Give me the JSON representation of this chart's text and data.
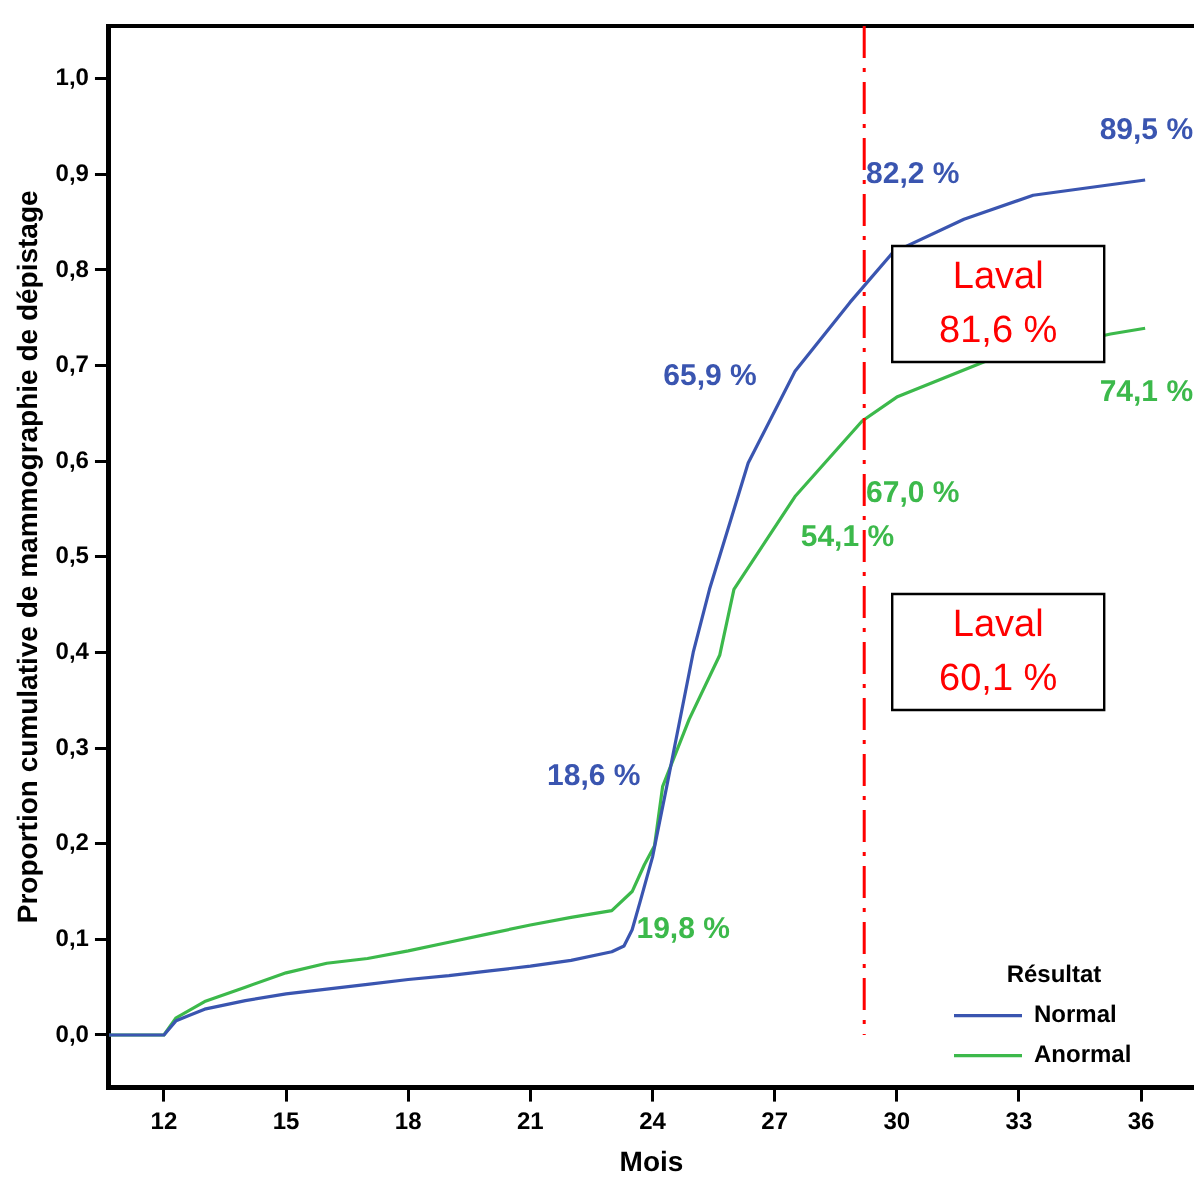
{
  "chart_data": {
    "type": "line",
    "xlabel": "Mois",
    "ylabel": "Proportion cumulative de mammographie de dépistage",
    "legend_title": "Résultat",
    "legend": "bottom right",
    "grid": false,
    "marker": "none",
    "line_style": "solid",
    "xlim": [
      10.65,
      37.3
    ],
    "xticks": [
      12,
      15,
      18,
      21,
      24,
      27,
      30,
      33,
      36
    ],
    "ylim": [
      -0.055,
      1.055
    ],
    "yticks": [
      {
        "value": 0,
        "label": "0,0"
      },
      {
        "value": 0.1,
        "label": "0,1"
      },
      {
        "value": 0.2,
        "label": "0,2"
      },
      {
        "value": 0.3,
        "label": "0,3"
      },
      {
        "value": 0.4,
        "label": "0,4"
      },
      {
        "value": 0.5,
        "label": "0,5"
      },
      {
        "value": 0.6,
        "label": "0,6"
      },
      {
        "value": 0.7,
        "label": "0,7"
      },
      {
        "value": 0.8,
        "label": "0,8"
      },
      {
        "value": 0.9,
        "label": "0,9"
      },
      {
        "value": 1,
        "label": "1,0"
      }
    ],
    "series": [
      {
        "name": "Normal",
        "color": "#3a55b0",
        "x": [
          10.65,
          12,
          12.3,
          13,
          14,
          15,
          16,
          17,
          18,
          19,
          20,
          21,
          22,
          23,
          23.3,
          23.5,
          23.7,
          24,
          24.35,
          25,
          25.4,
          26.35,
          27.5,
          28.85,
          29.9,
          31.65,
          33.35,
          36.1
        ],
        "values": [
          0,
          0,
          0.015,
          0.027,
          0.036,
          0.043,
          0.048,
          0.053,
          0.058,
          0.062,
          0.067,
          0.072,
          0.078,
          0.087,
          0.093,
          0.11,
          0.14,
          0.186,
          0.26,
          0.4,
          0.466,
          0.598,
          0.694,
          0.766,
          0.818,
          0.853,
          0.878,
          0.894
        ]
      },
      {
        "name": "Anormal",
        "color": "#3cb94b",
        "x": [
          10.65,
          12,
          12.3,
          13,
          14,
          15,
          16,
          17,
          18,
          19,
          20,
          21,
          22,
          23,
          23.5,
          23.8,
          24.05,
          24.25,
          24.9,
          25.65,
          26,
          27.5,
          29.15,
          30,
          32.15,
          35.25,
          36.1
        ],
        "values": [
          0,
          0,
          0.018,
          0.035,
          0.05,
          0.065,
          0.075,
          0.08,
          0.088,
          0.097,
          0.106,
          0.115,
          0.123,
          0.13,
          0.15,
          0.178,
          0.198,
          0.26,
          0.33,
          0.397,
          0.466,
          0.563,
          0.642,
          0.667,
          0.704,
          0.733,
          0.739
        ]
      }
    ],
    "ref_lines": [
      {
        "axis": "x",
        "value": 29.2,
        "color": "#ff0000",
        "line_style": "dashed"
      }
    ],
    "annotations": [
      {
        "text": "18,6 %",
        "x": 24,
        "y": 0.186
      },
      {
        "text": "19,8 %",
        "x": 24,
        "y": 0.198
      },
      {
        "text": "65,9 %",
        "x": 27.05,
        "y": 0.659
      },
      {
        "text": "54,1 %",
        "x": 27.15,
        "y": 0.541
      },
      {
        "text": "82,2 %",
        "x": 30,
        "y": 0.822
      },
      {
        "text": "67,0 %",
        "x": 30,
        "y": 0.67
      },
      {
        "text": "89,5 %",
        "x": 36,
        "y": 0.895
      },
      {
        "text": "74,1 %",
        "x": 36,
        "y": 0.741
      },
      "Laval\n81,6 %",
      "Laval\n60,1 %"
    ]
  }
}
